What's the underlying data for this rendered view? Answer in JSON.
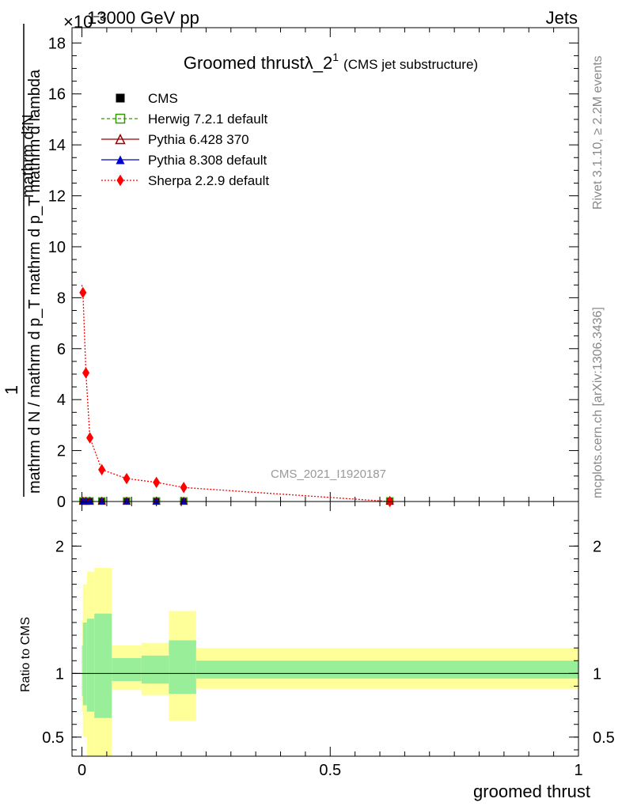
{
  "header": {
    "left": "13000 GeV pp",
    "right": "Jets",
    "exponent": "×10",
    "exponent_power": "−3"
  },
  "side_labels": {
    "rivet": "Rivet 3.1.10, ≥ 2.2M events",
    "mcplots": "mcplots.cern.ch [arXiv:1306.3436]"
  },
  "watermark": "CMS_2021_I1920187",
  "chart_data": [
    {
      "type": "line",
      "title": "Groomed thrustλ_2",
      "title_sup": "1",
      "title_suffix": "(CMS jet substructure)",
      "ylabel_numerator": "1",
      "ylabel_denominator": "mathrm d N / mathrm d p_T mathrm d p_T mathrm d lambda",
      "ylabel_top": "mathrm d²N",
      "xlim": [
        -0.02,
        1.0
      ],
      "ylim": [
        0,
        18.6
      ],
      "y_scale_note": "×10⁻³",
      "yticks": [
        "0",
        "2",
        "4",
        "6",
        "8",
        "10",
        "12",
        "14",
        "16",
        "18"
      ],
      "legend_position": "top-left",
      "series": [
        {
          "name": "CMS",
          "color": "#000000",
          "marker": "filled-square",
          "x": [
            0.002,
            0.008,
            0.016,
            0.04,
            0.09,
            0.15,
            0.205,
            0.62
          ],
          "y": [
            0.02,
            0.02,
            0.02,
            0.02,
            0.02,
            0.02,
            0.02,
            0.02
          ]
        },
        {
          "name": "Herwig 7.2.1 default",
          "color": "#339900",
          "marker": "open-square",
          "x": [
            0.002,
            0.008,
            0.016,
            0.04,
            0.09,
            0.15,
            0.205,
            0.62
          ],
          "y": [
            0.02,
            0.02,
            0.02,
            0.02,
            0.02,
            0.02,
            0.02,
            0.02
          ]
        },
        {
          "name": "Pythia 6.428 370",
          "color": "#990000",
          "marker": "open-triangle",
          "x": [
            0.002,
            0.008,
            0.016,
            0.04,
            0.09,
            0.15,
            0.205,
            0.62
          ],
          "y": [
            0.02,
            0.02,
            0.02,
            0.02,
            0.02,
            0.02,
            0.02,
            0.02
          ]
        },
        {
          "name": "Pythia 8.308 default",
          "color": "#0000cc",
          "marker": "filled-triangle",
          "x": [
            0.002,
            0.008,
            0.016,
            0.04,
            0.09,
            0.15,
            0.205,
            0.62
          ],
          "y": [
            0.02,
            0.02,
            0.02,
            0.02,
            0.02,
            0.02,
            0.02,
            0.02
          ]
        },
        {
          "name": "Sherpa 2.2.9 default",
          "color": "#ff0000",
          "marker": "diamond",
          "x": [
            0.0,
            0.002,
            0.008,
            0.016,
            0.04,
            0.09,
            0.15,
            0.205,
            0.62
          ],
          "y": [
            8.5,
            8.2,
            5.05,
            2.5,
            1.25,
            0.9,
            0.75,
            0.55,
            0.0
          ]
        }
      ]
    },
    {
      "type": "area",
      "ylabel": "Ratio to CMS",
      "xlabel": "groomed thrust",
      "xlim": [
        -0.02,
        1.0
      ],
      "ylim": [
        0.35,
        2.35
      ],
      "xticks": [
        "0",
        "0.5",
        "1"
      ],
      "yticks": [
        "0.5",
        "1",
        "2"
      ],
      "reference_line": 1,
      "bins": [
        {
          "x": [
            0.0,
            0.002
          ],
          "stat": [
            0.82,
            1.22
          ],
          "total": [
            0.7,
            1.42
          ]
        },
        {
          "x": [
            0.002,
            0.01
          ],
          "stat": [
            0.75,
            1.4
          ],
          "total": [
            0.5,
            1.7
          ]
        },
        {
          "x": [
            0.01,
            0.025
          ],
          "stat": [
            0.7,
            1.43
          ],
          "total": [
            0.35,
            1.8
          ]
        },
        {
          "x": [
            0.025,
            0.06
          ],
          "stat": [
            0.65,
            1.47
          ],
          "total": [
            0.35,
            1.83
          ]
        },
        {
          "x": [
            0.06,
            0.12
          ],
          "stat": [
            0.94,
            1.12
          ],
          "total": [
            0.87,
            1.22
          ]
        },
        {
          "x": [
            0.12,
            0.175
          ],
          "stat": [
            0.92,
            1.14
          ],
          "total": [
            0.83,
            1.24
          ]
        },
        {
          "x": [
            0.175,
            0.23
          ],
          "stat": [
            0.84,
            1.26
          ],
          "total": [
            0.63,
            1.49
          ]
        },
        {
          "x": [
            0.23,
            1.0
          ],
          "stat": [
            0.96,
            1.1
          ],
          "total": [
            0.88,
            1.2
          ]
        }
      ]
    }
  ]
}
